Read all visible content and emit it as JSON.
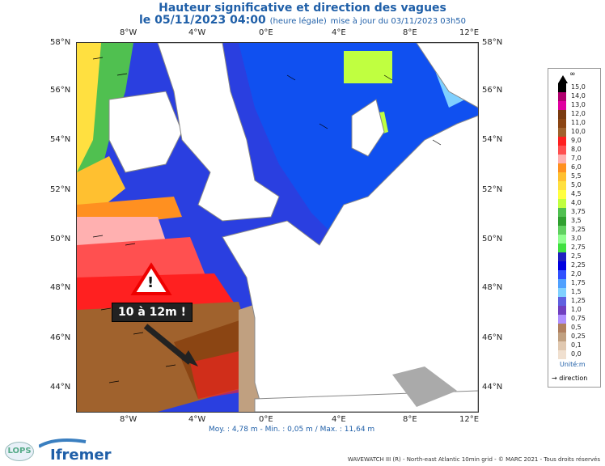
{
  "header": {
    "title": "Hauteur significative et direction des vagues",
    "date_line": "le 05/11/2023 04:00",
    "legal_time": "(heure légale)",
    "update": "mise à jour du 03/11/2023 03h50"
  },
  "axes": {
    "lon_labels": [
      "8°W",
      "4°W",
      "0°E",
      "4°E",
      "8°E",
      "12°E"
    ],
    "lat_labels": [
      "58°N",
      "56°N",
      "54°N",
      "52°N",
      "50°N",
      "48°N",
      "46°N",
      "44°N"
    ]
  },
  "legend": {
    "top_symbol": "∞",
    "levels": [
      "15,0",
      "14,0",
      "13,0",
      "12,0",
      "11,0",
      "10,0",
      "9,0",
      "8,0",
      "7,0",
      "6,0",
      "5,5",
      "5,0",
      "4,5",
      "4,0",
      "3,75",
      "3,5",
      "3,25",
      "3,0",
      "2,75",
      "2,5",
      "2,25",
      "2,0",
      "1,75",
      "1,5",
      "1,25",
      "1,0",
      "0,75",
      "0,5",
      "0,25",
      "0,1",
      "0,0"
    ],
    "colors": [
      "#000000",
      "#b0006f",
      "#e000a0",
      "#7a3a10",
      "#8b4513",
      "#a0622d",
      "#ff2020",
      "#ff5050",
      "#ffb0b0",
      "#ff9020",
      "#ffc030",
      "#ffe040",
      "#ffff40",
      "#c0ff40",
      "#50c050",
      "#30a030",
      "#60d060",
      "#90ff90",
      "#40e040",
      "#2020c0",
      "#0000e0",
      "#3050ff",
      "#50a0ff",
      "#80d0ff",
      "#6060e0",
      "#7040c0",
      "#b090ff",
      "#b08060",
      "#c0a080",
      "#e0c8b0",
      "#f0e0d0"
    ],
    "unit": "Unité:m",
    "direction_label": "direction"
  },
  "stats": "Moy. : 4,78 m   -   Min. : 0,05 m / Max. : 11,64 m",
  "warning": {
    "symbol": "!",
    "text": "10 à 12m !"
  },
  "logos": {
    "lops": "LOPS",
    "ifremer": "Ifremer"
  },
  "credit": "WAVEWATCH III (R) - North-east Atlantic 10min grid - © MARC 2021 - Tous droits réservés"
}
